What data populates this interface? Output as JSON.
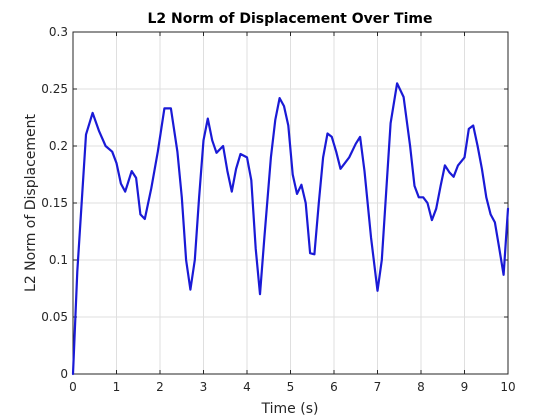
{
  "chart_data": {
    "type": "line",
    "title": "L2 Norm of Displacement Over Time",
    "xlabel": "Time (s)",
    "ylabel": "L2 Norm of Displacement",
    "xlim": [
      0,
      10
    ],
    "ylim": [
      0,
      0.3
    ],
    "xticks": [
      0,
      1,
      2,
      3,
      4,
      5,
      6,
      7,
      8,
      9,
      10
    ],
    "xtick_labels": [
      "0",
      "1",
      "2",
      "3",
      "4",
      "5",
      "6",
      "7",
      "8",
      "9",
      "10"
    ],
    "yticks": [
      0,
      0.05,
      0.1,
      0.15,
      0.2,
      0.25,
      0.3
    ],
    "ytick_labels": [
      "0",
      "0.05",
      "0.1",
      "0.15",
      "0.2",
      "0.25",
      "0.3"
    ],
    "grid": true,
    "colors": {
      "line": "#1a1ad6"
    },
    "series": [
      {
        "x": [
          0,
          0.1,
          0.3,
          0.45,
          0.6,
          0.75,
          0.9,
          1.0,
          1.1,
          1.2,
          1.35,
          1.45,
          1.55,
          1.65,
          1.8,
          1.95,
          2.1,
          2.25,
          2.4,
          2.5,
          2.6,
          2.7,
          2.8,
          2.9,
          3.0,
          3.1,
          3.2,
          3.3,
          3.45,
          3.55,
          3.65,
          3.75,
          3.85,
          4.0,
          4.1,
          4.2,
          4.3,
          4.4,
          4.55,
          4.65,
          4.75,
          4.85,
          4.95,
          5.05,
          5.15,
          5.25,
          5.35,
          5.45,
          5.55,
          5.65,
          5.75,
          5.85,
          5.95,
          6.05,
          6.15,
          6.25,
          6.35,
          6.5,
          6.6,
          6.7,
          6.85,
          7.0,
          7.1,
          7.2,
          7.3,
          7.45,
          7.6,
          7.75,
          7.85,
          7.95,
          8.05,
          8.15,
          8.25,
          8.35,
          8.45,
          8.55,
          8.65,
          8.75,
          8.85,
          9.0,
          9.1,
          9.2,
          9.3,
          9.4,
          9.5,
          9.6,
          9.7,
          9.8,
          9.9,
          10.0
        ],
        "y": [
          0.0,
          0.09,
          0.21,
          0.229,
          0.213,
          0.2,
          0.195,
          0.185,
          0.167,
          0.16,
          0.178,
          0.172,
          0.14,
          0.136,
          0.163,
          0.195,
          0.233,
          0.233,
          0.195,
          0.155,
          0.1,
          0.074,
          0.1,
          0.155,
          0.205,
          0.224,
          0.205,
          0.194,
          0.2,
          0.178,
          0.16,
          0.18,
          0.193,
          0.19,
          0.17,
          0.11,
          0.07,
          0.12,
          0.19,
          0.223,
          0.242,
          0.235,
          0.218,
          0.175,
          0.158,
          0.166,
          0.15,
          0.106,
          0.105,
          0.15,
          0.19,
          0.211,
          0.208,
          0.195,
          0.18,
          0.185,
          0.19,
          0.202,
          0.208,
          0.178,
          0.12,
          0.073,
          0.1,
          0.16,
          0.22,
          0.255,
          0.243,
          0.2,
          0.165,
          0.155,
          0.155,
          0.15,
          0.135,
          0.145,
          0.165,
          0.183,
          0.177,
          0.173,
          0.183,
          0.19,
          0.215,
          0.218,
          0.2,
          0.18,
          0.155,
          0.14,
          0.133,
          0.11,
          0.087,
          0.145
        ]
      }
    ]
  }
}
